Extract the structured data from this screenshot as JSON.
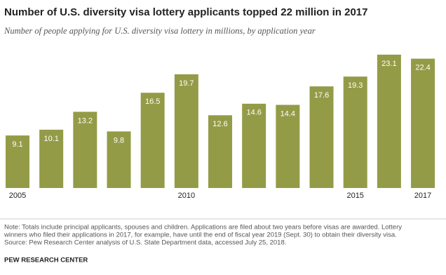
{
  "chart_data": {
    "type": "bar",
    "title": "Number of U.S. diversity visa lottery applicants topped 22 million in 2017",
    "subtitle": "Number of people applying for U.S. diversity visa lottery in millions, by application year",
    "categories": [
      "2005",
      null,
      null,
      null,
      null,
      "2010",
      null,
      null,
      null,
      null,
      "2015",
      null,
      "2017"
    ],
    "values": [
      9.1,
      10.1,
      13.2,
      9.8,
      16.5,
      19.7,
      12.6,
      14.6,
      14.4,
      17.6,
      19.3,
      23.1,
      22.4
    ],
    "color": "#949b47",
    "notes": [
      "Note: Totals include principal applicants, spouses and children. Applications are filed about two years before visas are awarded. Lottery",
      "winners who filed their applications in 2017, for example, have until the end of fiscal year 2019 (Sept. 30) to obtain their diversity visa.",
      "Source: Pew Research Center analysis of U.S. State Department data, accessed July 25, 2018."
    ],
    "credit": "PEW RESEARCH CENTER"
  }
}
